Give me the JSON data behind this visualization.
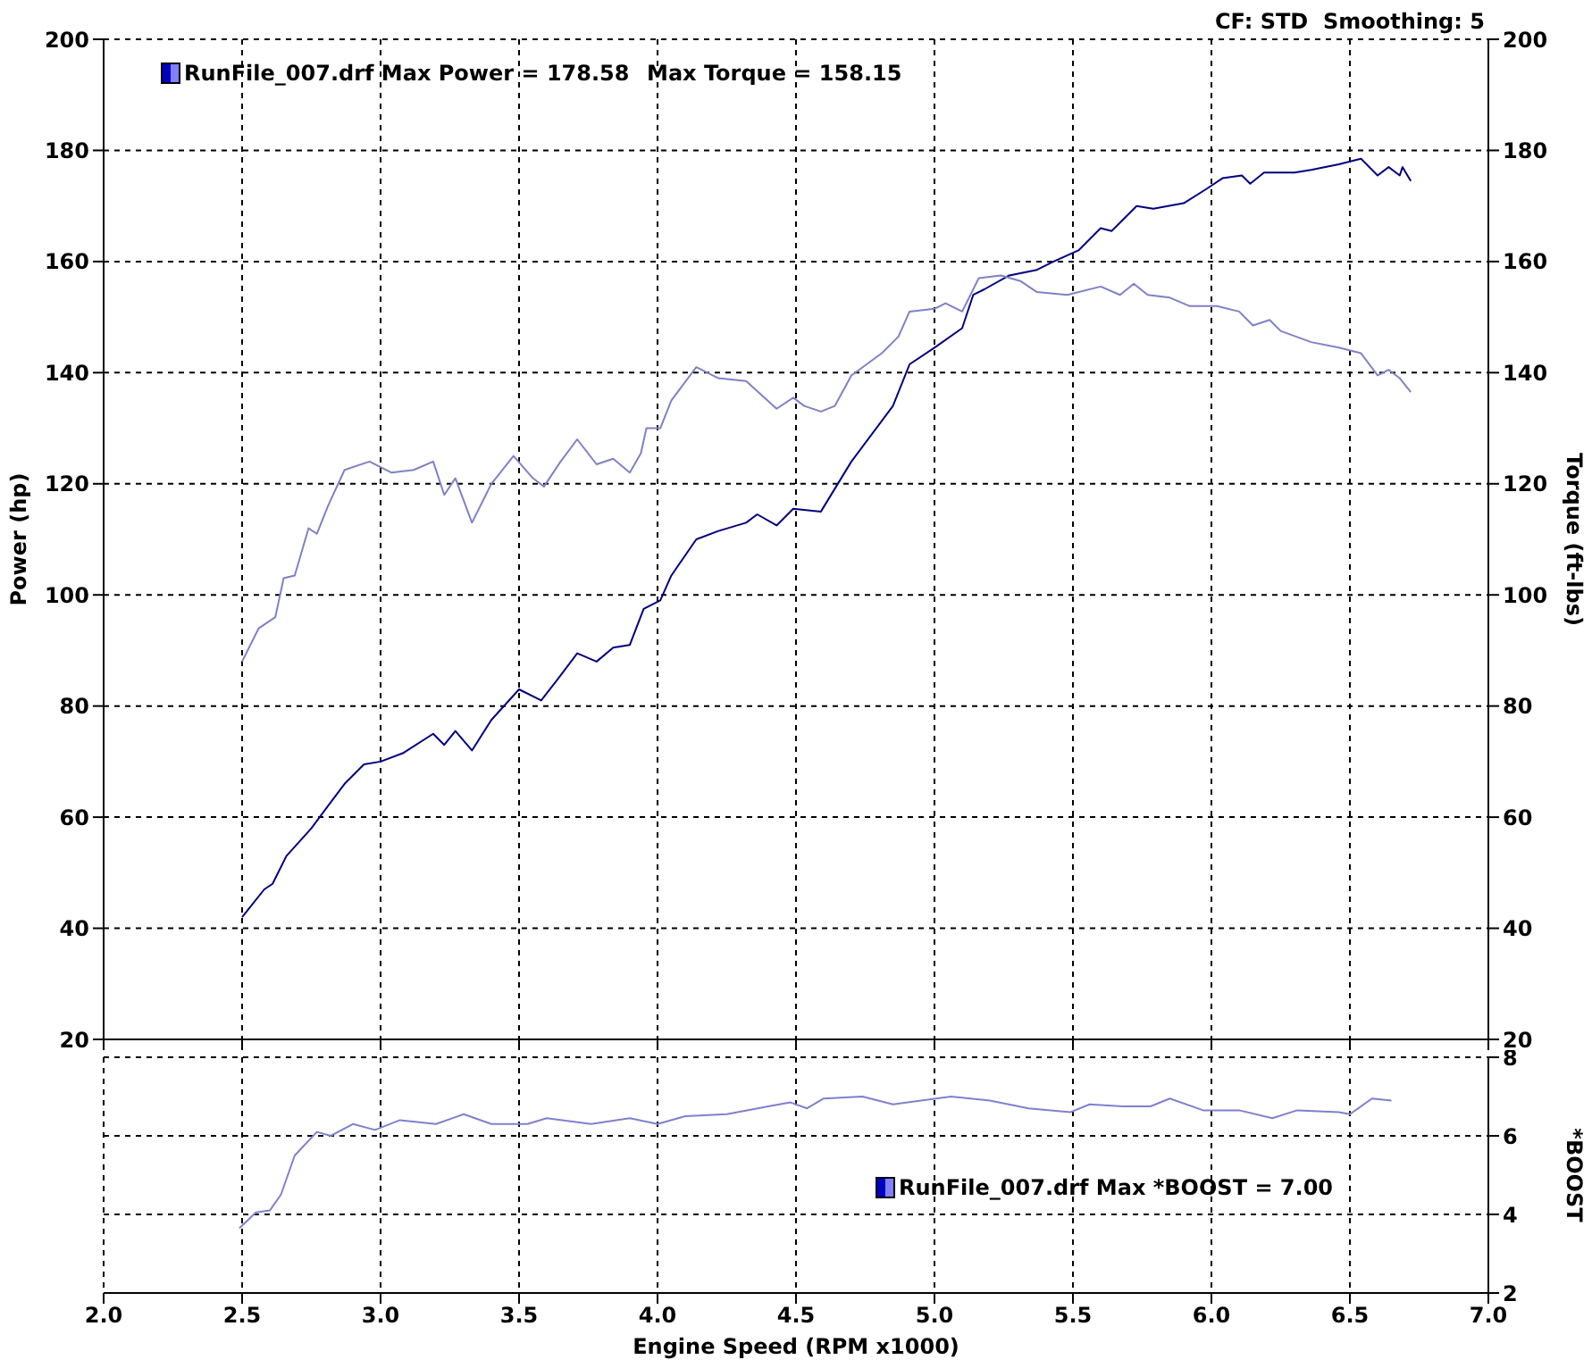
{
  "chart_data": [
    {
      "type": "line",
      "ylabel": "Power (hp)",
      "y2label": "Torque (ft-lbs)",
      "xlim": [
        2,
        7
      ],
      "xticks": [
        2,
        2.5,
        3,
        3.5,
        4,
        4.5,
        5,
        5.5,
        6,
        6.5,
        7
      ],
      "ylim": [
        20,
        200
      ],
      "yticks": [
        20,
        40,
        60,
        80,
        100,
        120,
        140,
        160,
        180,
        200
      ],
      "y2lim": [
        20,
        200
      ],
      "y2ticks": [
        20,
        40,
        60,
        80,
        100,
        120,
        140,
        160,
        180,
        200
      ],
      "grid": true,
      "tick_labels": "y",
      "annotations": [
        "RunFile_007.drf Max Power = 178.58",
        "Max Torque = 158.15",
        "CF: STD  Smoothing: 5"
      ],
      "series": [
        {
          "color": "#000080",
          "x": [
            2.5,
            2.58,
            2.61,
            2.66,
            2.75,
            2.81,
            2.87,
            2.94,
            3.0,
            3.08,
            3.19,
            3.23,
            3.27,
            3.33,
            3.4,
            3.5,
            3.58,
            3.65,
            3.71,
            3.78,
            3.84,
            3.9,
            3.95,
            4.01,
            4.05,
            4.14,
            4.22,
            4.32,
            4.36,
            4.43,
            4.49,
            4.59,
            4.7,
            4.85,
            4.91,
            5.0,
            5.1,
            5.14,
            5.18,
            5.27,
            5.37,
            5.43,
            5.52,
            5.6,
            5.64,
            5.73,
            5.79,
            5.9,
            5.98,
            6.04,
            6.11,
            6.14,
            6.19,
            6.3,
            6.36,
            6.46,
            6.54,
            6.6,
            6.64,
            6.68,
            6.69,
            6.72
          ],
          "values": [
            42,
            47,
            48,
            53,
            58,
            62,
            66,
            69.5,
            70,
            71.5,
            75,
            73,
            75.5,
            72,
            77.5,
            83,
            81,
            85.5,
            89.5,
            88,
            90.5,
            91,
            97.5,
            99,
            103.5,
            110,
            111.5,
            113,
            114.5,
            112.5,
            115.5,
            115,
            124,
            134,
            141.5,
            144.5,
            148,
            154,
            155,
            157.5,
            158.5,
            160,
            162,
            166,
            165.5,
            170,
            169.5,
            170.5,
            173,
            175,
            175.5,
            174,
            176,
            176,
            176.5,
            177.5,
            178.5,
            175.5,
            177,
            175.5,
            177,
            174.5
          ]
        },
        {
          "color": "#8080c8",
          "axis": "y2",
          "x": [
            2.5,
            2.56,
            2.62,
            2.65,
            2.69,
            2.74,
            2.77,
            2.81,
            2.87,
            2.96,
            3.04,
            3.12,
            3.19,
            3.23,
            3.27,
            3.33,
            3.4,
            3.48,
            3.55,
            3.59,
            3.65,
            3.71,
            3.78,
            3.84,
            3.9,
            3.94,
            3.96,
            4.01,
            4.05,
            4.14,
            4.22,
            4.32,
            4.43,
            4.49,
            4.53,
            4.59,
            4.64,
            4.7,
            4.81,
            4.87,
            4.91,
            5.0,
            5.04,
            5.1,
            5.16,
            5.24,
            5.31,
            5.37,
            5.48,
            5.6,
            5.67,
            5.72,
            5.77,
            5.85,
            5.92,
            6.02,
            6.1,
            6.15,
            6.21,
            6.25,
            6.36,
            6.46,
            6.54,
            6.6,
            6.64,
            6.68,
            6.72
          ],
          "values": [
            88,
            94,
            96,
            103,
            103.5,
            112,
            111,
            116,
            122.5,
            124,
            122,
            122.5,
            124,
            118,
            121,
            113,
            120,
            125,
            121,
            119.5,
            124,
            128,
            123.5,
            124.5,
            122,
            125.5,
            130,
            130,
            135,
            141,
            139,
            138.5,
            133.5,
            135.5,
            134,
            133,
            134,
            139.5,
            143.5,
            146.5,
            151,
            151.5,
            152.5,
            151,
            157,
            157.5,
            156.5,
            154.5,
            154,
            155.5,
            154,
            156,
            154,
            153.5,
            152,
            152,
            151,
            148.5,
            149.5,
            147.5,
            145.5,
            144.5,
            143.5,
            139.5,
            140.5,
            139,
            136.5
          ]
        }
      ]
    },
    {
      "type": "line",
      "xlabel": "Engine Speed (RPM x1000)",
      "y2label": "*BOOST",
      "xlim": [
        2,
        7
      ],
      "xticks": [
        {
          "value": 2,
          "label": "2.0"
        },
        2.5,
        {
          "value": 3,
          "label": "3.0"
        },
        3.5,
        {
          "value": 4,
          "label": "4.0"
        },
        4.5,
        {
          "value": 5,
          "label": "5.0"
        },
        5.5,
        {
          "value": 6,
          "label": "6.0"
        },
        6.5,
        {
          "value": 7,
          "label": "7.0"
        }
      ],
      "y2lim": [
        2,
        8
      ],
      "y2ticks": [
        2,
        4,
        6,
        8
      ],
      "grid": true,
      "annotations": [
        "RunFile_007.drf Max *BOOST = 7.00"
      ],
      "series": [
        {
          "color": "#8080d0",
          "axis": "y2",
          "x": [
            2.49,
            2.55,
            2.6,
            2.64,
            2.69,
            2.77,
            2.82,
            2.9,
            2.98,
            3.07,
            3.2,
            3.3,
            3.4,
            3.53,
            3.6,
            3.76,
            3.9,
            4.0,
            4.1,
            4.25,
            4.4,
            4.48,
            4.54,
            4.6,
            4.74,
            4.85,
            5.06,
            5.2,
            5.34,
            5.49,
            5.56,
            5.68,
            5.78,
            5.85,
            5.97,
            6.1,
            6.22,
            6.31,
            6.46,
            6.5,
            6.58,
            6.65
          ],
          "values": [
            3.65,
            4.05,
            4.1,
            4.5,
            5.5,
            6.1,
            6,
            6.3,
            6.15,
            6.4,
            6.3,
            6.55,
            6.3,
            6.3,
            6.45,
            6.3,
            6.45,
            6.3,
            6.5,
            6.55,
            6.75,
            6.85,
            6.7,
            6.95,
            7,
            6.8,
            7,
            6.9,
            6.7,
            6.6,
            6.8,
            6.75,
            6.75,
            6.95,
            6.65,
            6.65,
            6.45,
            6.65,
            6.6,
            6.55,
            6.95,
            6.9
          ]
        }
      ]
    }
  ]
}
